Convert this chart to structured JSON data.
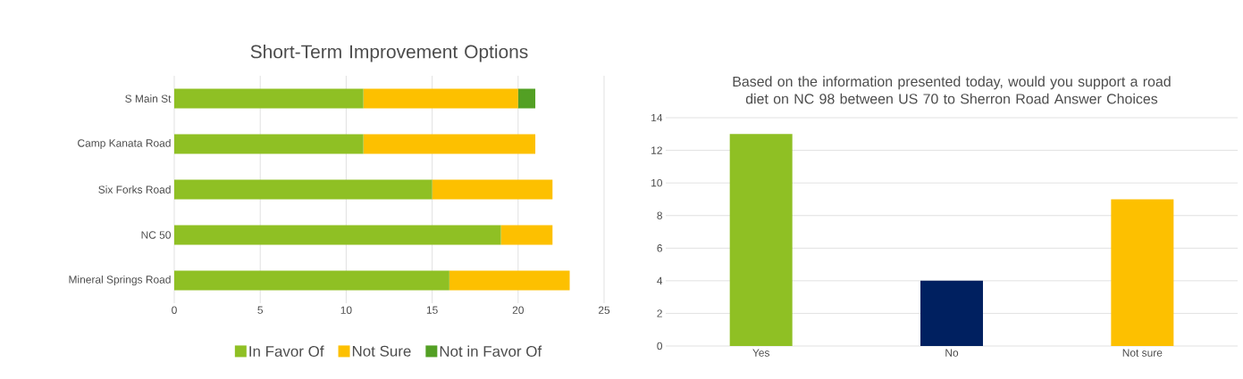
{
  "chart_data": [
    {
      "type": "bar",
      "orientation": "horizontal",
      "stacked": true,
      "title": "Short-Term Improvement Options",
      "categories": [
        "S Main St",
        "Camp Kanata Road",
        "Six Forks Road",
        "NC 50",
        "Mineral Springs Road"
      ],
      "series": [
        {
          "name": "In Favor Of",
          "color": "#8fc024",
          "values": [
            11,
            11,
            15,
            19,
            16
          ]
        },
        {
          "name": "Not Sure",
          "color": "#fdc000",
          "values": [
            9,
            10,
            7,
            3,
            7
          ]
        },
        {
          "name": "Not in Favor Of",
          "color": "#53a024",
          "values": [
            1,
            0,
            0,
            0,
            0
          ]
        }
      ],
      "xlim": [
        0,
        25
      ],
      "xticks": [
        0,
        5,
        10,
        15,
        20,
        25
      ],
      "grid": "x",
      "legend": "bottom"
    },
    {
      "type": "bar",
      "title": "Based on the information presented today, would you support a road diet on NC 98 between US 70 to Sherron Road Answer Choices",
      "categories": [
        "Yes",
        "No",
        "Not sure"
      ],
      "values": [
        13,
        4,
        9
      ],
      "colors": [
        "#8fc024",
        "#002060",
        "#fdc000"
      ],
      "ylim": [
        0,
        14
      ],
      "yticks": [
        0,
        2,
        4,
        6,
        8,
        10,
        12,
        14
      ],
      "grid": "y"
    }
  ]
}
